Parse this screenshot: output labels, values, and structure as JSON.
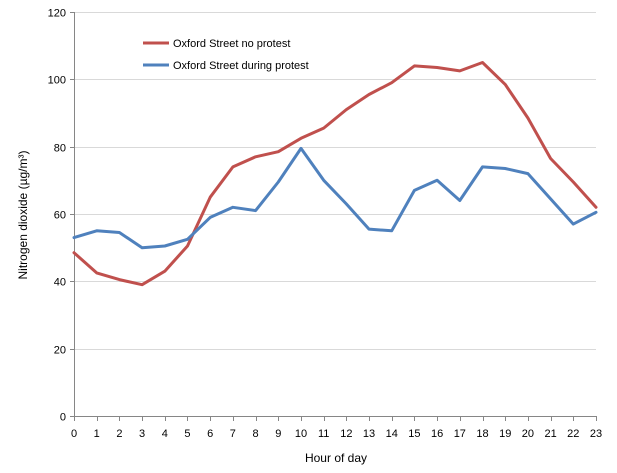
{
  "chart_data": {
    "type": "line",
    "title": "",
    "xlabel": "Hour of day",
    "ylabel": "Nitrogen dioxide (µg/m³)",
    "ylim": [
      0,
      120
    ],
    "yticks": [
      0,
      20,
      40,
      60,
      80,
      100,
      120
    ],
    "grid": true,
    "legend": "top-left",
    "x": [
      0,
      1,
      2,
      3,
      4,
      5,
      6,
      7,
      8,
      9,
      10,
      11,
      12,
      13,
      14,
      15,
      16,
      17,
      18,
      19,
      20,
      21,
      22,
      23
    ],
    "series": [
      {
        "name": "Oxford Street no protest",
        "color": "#c0504d",
        "values": [
          48.5,
          42.5,
          40.5,
          39,
          43,
          50.5,
          65,
          74,
          77,
          78.5,
          82.5,
          85.5,
          91,
          95.5,
          99,
          104,
          103.5,
          102.5,
          105,
          98.5,
          88.5,
          76.5,
          69.5,
          62
        ]
      },
      {
        "name": "Oxford Street during protest",
        "color": "#4f81bd",
        "values": [
          53,
          55,
          54.5,
          50,
          50.5,
          52.5,
          59,
          62,
          61,
          69.5,
          79.5,
          70,
          63,
          55.5,
          55,
          67,
          70,
          64,
          74,
          73.5,
          72,
          64.5,
          57,
          60.5
        ]
      }
    ]
  }
}
